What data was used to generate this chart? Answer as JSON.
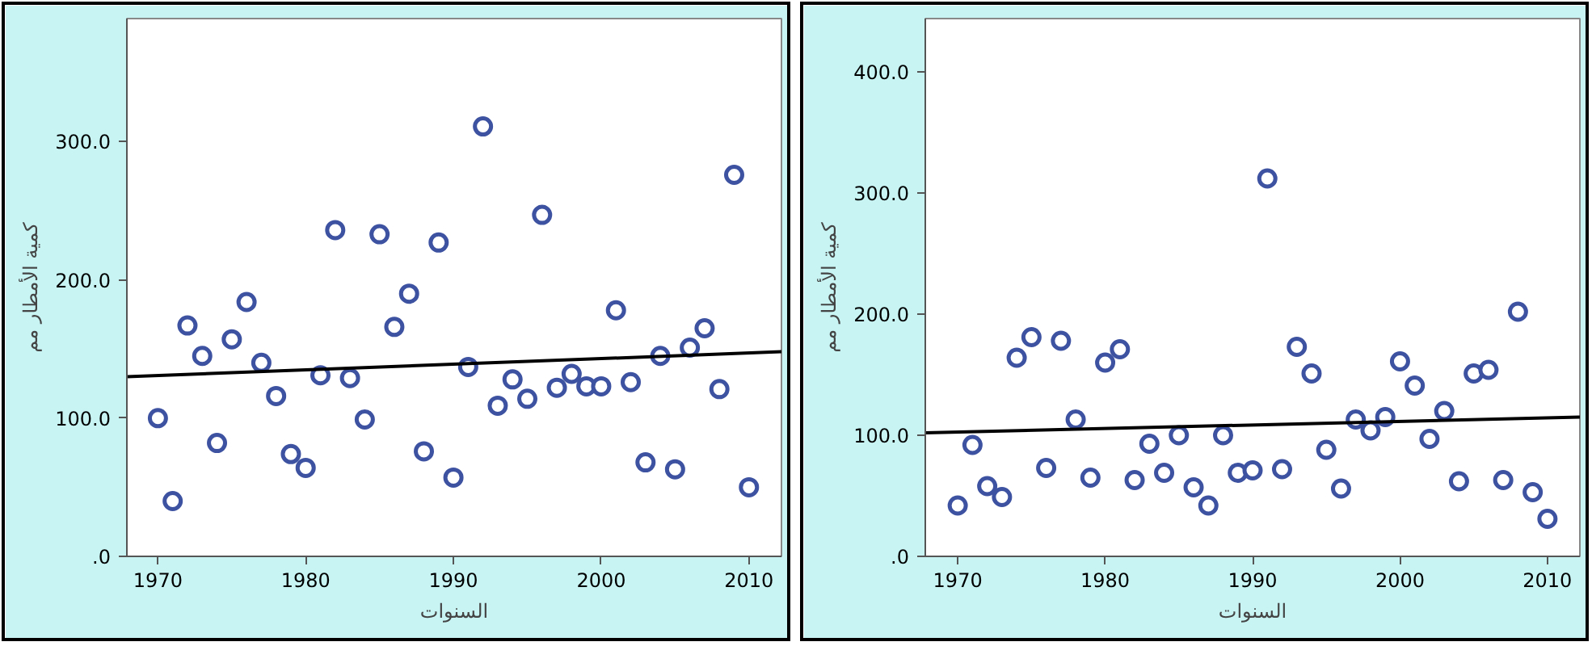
{
  "chart_data": [
    {
      "type": "scatter",
      "xlabel": "السنوات",
      "ylabel": "كمية الأمطار مم",
      "xlim": [
        1967.9,
        2012.2
      ],
      "ylim": [
        0,
        389
      ],
      "xticks": [
        1970,
        1980,
        1990,
        2000,
        2010
      ],
      "yticks": [
        {
          "value": 0,
          "label": ".0"
        },
        {
          "value": 100,
          "label": "100.0"
        },
        {
          "value": 200,
          "label": "200.0"
        },
        {
          "value": 300,
          "label": "300.0"
        }
      ],
      "grid": false,
      "series": [
        {
          "marker": "circle",
          "color": "#3d52a1",
          "x": [
            1970,
            1971,
            1972,
            1973,
            1974,
            1975,
            1976,
            1977,
            1978,
            1979,
            1980,
            1981,
            1982,
            1983,
            1984,
            1985,
            1986,
            1987,
            1988,
            1989,
            1990,
            1991,
            1992,
            1993,
            1994,
            1995,
            1996,
            1997,
            1998,
            1999,
            2000,
            2001,
            2002,
            2003,
            2004,
            2005,
            2006,
            2007,
            2008,
            2009,
            2010
          ],
          "values": [
            100,
            40,
            167,
            145,
            82,
            157,
            184,
            140,
            116,
            74,
            64,
            131,
            236,
            129,
            99,
            233,
            166,
            190,
            76,
            227,
            57,
            137,
            311,
            109,
            128,
            114,
            247,
            122,
            132,
            123,
            123,
            178,
            126,
            68,
            145,
            63,
            151,
            165,
            121,
            276,
            50
          ]
        },
        {
          "type": "line",
          "color": "#000000",
          "x": [
            1967.9,
            2012.2
          ],
          "values": [
            130,
            148
          ]
        }
      ]
    },
    {
      "type": "scatter",
      "xlabel": "السنوات",
      "ylabel": "كمية الأمطار مم",
      "xlim": [
        1967.8,
        2012.2
      ],
      "ylim": [
        0,
        444
      ],
      "xticks": [
        1970,
        1980,
        1990,
        2000,
        2010
      ],
      "yticks": [
        {
          "value": 0,
          "label": ".0"
        },
        {
          "value": 100,
          "label": "100.0"
        },
        {
          "value": 200,
          "label": "200.0"
        },
        {
          "value": 300,
          "label": "300.0"
        },
        {
          "value": 400,
          "label": "400.0"
        }
      ],
      "grid": false,
      "series": [
        {
          "marker": "circle",
          "color": "#3d52a1",
          "x": [
            1970,
            1971,
            1972,
            1973,
            1974,
            1975,
            1976,
            1977,
            1978,
            1979,
            1980,
            1981,
            1982,
            1983,
            1984,
            1985,
            1986,
            1987,
            1988,
            1989,
            1990,
            1991,
            1992,
            1993,
            1994,
            1995,
            1996,
            1997,
            1998,
            1999,
            2000,
            2001,
            2002,
            2003,
            2004,
            2005,
            2006,
            2007,
            2008,
            2009,
            2010
          ],
          "values": [
            42,
            92,
            58,
            49,
            164,
            181,
            73,
            178,
            113,
            65,
            160,
            171,
            63,
            93,
            69,
            100,
            57,
            42,
            100,
            69,
            71,
            312,
            72,
            173,
            151,
            88,
            56,
            113,
            104,
            115,
            161,
            141,
            97,
            120,
            62,
            151,
            154,
            63,
            202,
            53,
            31
          ]
        },
        {
          "type": "line",
          "color": "#000000",
          "x": [
            1967.8,
            2012.2
          ],
          "values": [
            102,
            115
          ]
        }
      ]
    }
  ]
}
